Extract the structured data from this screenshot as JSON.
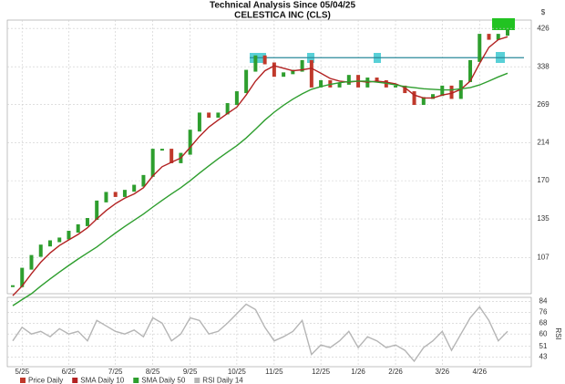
{
  "chart_data": [
    {
      "type": "candle-line",
      "title": "Technical Analysis Since 05/04/25",
      "subtitle": "CELESTICA INC (CLS)",
      "y_unit": "$",
      "log_scale": true,
      "grid": true,
      "categories": [
        null,
        "5/25",
        null,
        null,
        null,
        null,
        "6/25",
        null,
        null,
        null,
        null,
        "7/25",
        null,
        null,
        null,
        "8/25",
        null,
        null,
        null,
        "9/25",
        null,
        null,
        null,
        null,
        "10/25",
        null,
        null,
        null,
        "11/25",
        null,
        null,
        null,
        null,
        "12/25",
        null,
        null,
        null,
        "1/26",
        null,
        null,
        null,
        "2/26",
        null,
        null,
        null,
        null,
        "3/26",
        null,
        null,
        null,
        "4/26",
        null,
        null,
        null
      ],
      "ylim": [
        86,
        448
      ],
      "yticks": [
        107,
        135,
        170,
        214,
        269,
        338,
        426
      ],
      "resistance_line": 357,
      "series": [
        {
          "name": "Price Daily",
          "color": "#c0392b",
          "up_color": "#2e9e2e",
          "values": [
            90,
            100,
            108,
            115,
            118,
            120,
            125,
            130,
            135,
            150,
            158,
            155,
            160,
            165,
            175,
            205,
            205,
            190,
            200,
            230,
            255,
            250,
            255,
            270,
            290,
            330,
            360,
            345,
            320,
            325,
            330,
            350,
            300,
            310,
            300,
            305,
            320,
            300,
            315,
            310,
            300,
            300,
            290,
            270,
            280,
            285,
            300,
            280,
            310,
            350,
            410,
            400,
            410,
            420
          ]
        },
        {
          "name": "SMA Daily 10",
          "color": "#b22222",
          "values": [
            85,
            90,
            97,
            104,
            110,
            115,
            119,
            123,
            128,
            135,
            142,
            148,
            153,
            157,
            163,
            175,
            185,
            190,
            195,
            208,
            222,
            235,
            245,
            255,
            265,
            285,
            310,
            330,
            340,
            335,
            330,
            332,
            335,
            325,
            315,
            310,
            308,
            310,
            308,
            310,
            308,
            305,
            298,
            285,
            280,
            280,
            285,
            288,
            295,
            310,
            345,
            380,
            398,
            405
          ]
        },
        {
          "name": "SMA Daily 50",
          "color": "#2e9e2e",
          "values": [
            80,
            83,
            86,
            90,
            94,
            98,
            102,
            106,
            110,
            114,
            119,
            124,
            129,
            134,
            139,
            145,
            151,
            157,
            163,
            170,
            178,
            186,
            194,
            202,
            210,
            220,
            232,
            245,
            257,
            268,
            278,
            287,
            295,
            300,
            304,
            307,
            309,
            310,
            310,
            308,
            306,
            303,
            300,
            298,
            296,
            295,
            294,
            294,
            296,
            298,
            303,
            310,
            318,
            325
          ]
        }
      ]
    },
    {
      "type": "line",
      "ylabel": "RSI",
      "ylim": [
        36,
        87
      ],
      "yticks": [
        43,
        51,
        60,
        68,
        76,
        84
      ],
      "grid": true,
      "series": [
        {
          "name": "RSI Daily 14",
          "color": "#b5b5b5",
          "values": [
            55,
            65,
            60,
            62,
            58,
            64,
            60,
            62,
            55,
            70,
            66,
            62,
            60,
            63,
            58,
            72,
            68,
            55,
            60,
            72,
            70,
            60,
            62,
            68,
            75,
            82,
            78,
            65,
            55,
            58,
            62,
            70,
            45,
            52,
            50,
            55,
            62,
            50,
            58,
            55,
            50,
            52,
            48,
            40,
            50,
            55,
            62,
            48,
            60,
            72,
            80,
            70,
            55,
            62
          ]
        }
      ]
    }
  ]
}
